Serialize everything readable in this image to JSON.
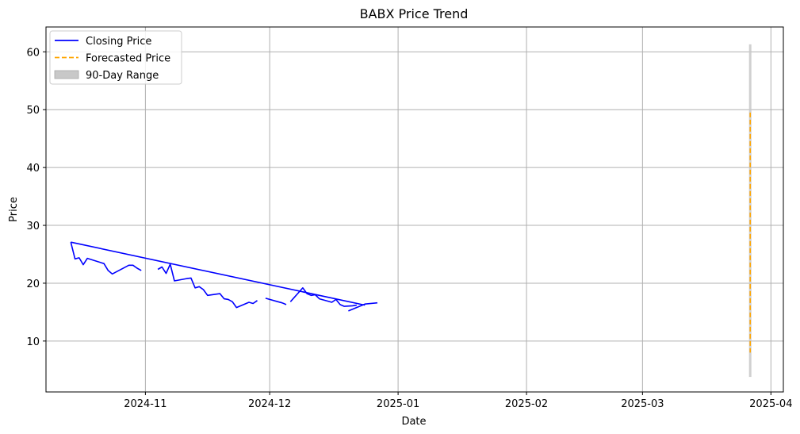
{
  "chart_data": {
    "type": "line",
    "title": "BABX Price Trend",
    "xlabel": "Date",
    "ylabel": "Price",
    "grid": true,
    "legend_position": "top-left",
    "x_ticks": [
      "2024-11",
      "2024-12",
      "2025-01",
      "2025-02",
      "2025-03",
      "2025-04"
    ],
    "y_ticks": [
      10,
      20,
      30,
      40,
      50,
      60
    ],
    "xlim": [
      "2024-10-08",
      "2025-04-04"
    ],
    "ylim": [
      1.2,
      64.3
    ],
    "colors": {
      "closing": "#0000ff",
      "forecast": "#ffa500",
      "range": "#c8c8c8",
      "grid": "#b0b0b0"
    },
    "legend": [
      {
        "label": "Closing Price",
        "style": "solid-line",
        "color": "#0000ff"
      },
      {
        "label": "Forecasted Price",
        "style": "dashed-line",
        "color": "#ffa500"
      },
      {
        "label": "90-Day Range",
        "style": "filled-box",
        "color": "#c8c8c8"
      }
    ],
    "series": [
      {
        "name": "Closing Price",
        "segments": [
          [
            [
              "2024-10-14",
              27.1
            ],
            [
              "2024-10-15",
              24.2
            ],
            [
              "2024-10-16",
              24.4
            ],
            [
              "2024-10-17",
              23.2
            ],
            [
              "2024-10-18",
              24.3
            ],
            [
              "2024-10-22",
              23.4
            ],
            [
              "2024-10-23",
              22.2
            ],
            [
              "2024-10-24",
              21.6
            ],
            [
              "2024-10-28",
              23.1
            ],
            [
              "2024-10-29",
              23.1
            ],
            [
              "2024-10-30",
              22.6
            ],
            [
              "2024-10-31",
              22.2
            ]
          ],
          [
            [
              "2024-11-04",
              22.4
            ],
            [
              "2024-11-05",
              22.8
            ],
            [
              "2024-11-06",
              21.7
            ],
            [
              "2024-11-07",
              23.3
            ],
            [
              "2024-11-08",
              20.4
            ],
            [
              "2024-11-11",
              20.8
            ],
            [
              "2024-11-12",
              20.9
            ],
            [
              "2024-11-13",
              19.2
            ],
            [
              "2024-11-14",
              19.4
            ],
            [
              "2024-11-15",
              18.9
            ],
            [
              "2024-11-16",
              17.9
            ],
            [
              "2024-11-19",
              18.2
            ],
            [
              "2024-11-20",
              17.3
            ],
            [
              "2024-11-21",
              17.2
            ],
            [
              "2024-11-22",
              16.8
            ],
            [
              "2024-11-23",
              15.8
            ],
            [
              "2024-11-26",
              16.7
            ],
            [
              "2024-11-27",
              16.5
            ],
            [
              "2024-11-28",
              17.0
            ]
          ],
          [
            [
              "2024-11-30",
              17.4
            ],
            [
              "2024-12-03",
              16.8
            ],
            [
              "2024-12-04",
              16.6
            ],
            [
              "2024-12-05",
              16.3
            ]
          ],
          [
            [
              "2024-12-06",
              16.8
            ],
            [
              "2024-12-08",
              18.4
            ],
            [
              "2024-12-09",
              19.2
            ],
            [
              "2024-12-10",
              18.2
            ],
            [
              "2024-12-11",
              17.9
            ],
            [
              "2024-12-12",
              18.0
            ],
            [
              "2024-12-13",
              17.3
            ],
            [
              "2024-12-15",
              16.9
            ],
            [
              "2024-12-16",
              16.7
            ],
            [
              "2024-12-17",
              17.2
            ],
            [
              "2024-12-18",
              16.3
            ],
            [
              "2024-12-19",
              16.0
            ],
            [
              "2024-12-21",
              16.1
            ],
            [
              "2024-12-22",
              16.2
            ]
          ],
          [
            [
              "2024-12-20",
              15.2
            ],
            [
              "2024-12-24",
              16.4
            ],
            [
              "2024-12-27",
              16.6
            ]
          ],
          [
            [
              "2024-10-14",
              27.1
            ],
            [
              "2024-12-24",
              16.2
            ]
          ]
        ]
      },
      {
        "name": "Forecasted Price",
        "x": "2025-03-27",
        "y_range": [
          8.0,
          49.5
        ]
      },
      {
        "name": "90-Day Range",
        "x": "2025-03-27",
        "y_range": [
          3.8,
          61.3
        ]
      }
    ]
  }
}
